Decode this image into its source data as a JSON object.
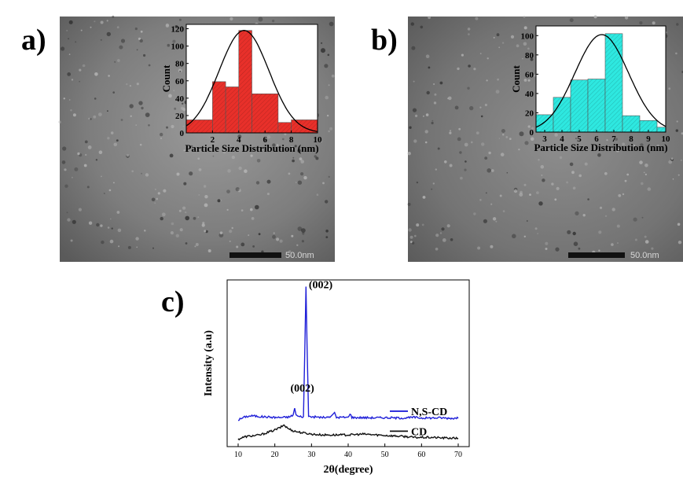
{
  "panel_labels": {
    "a": "a)",
    "b": "b)",
    "c": "c)"
  },
  "tem_a": {
    "scale_bar_label": "50.0nm"
  },
  "tem_b": {
    "scale_bar_label": "50.0nm"
  },
  "chart_data": [
    {
      "id": "a",
      "type": "bar",
      "xlabel": "Particle Size Distribution (nm)",
      "ylabel": "Count",
      "xlim": [
        0,
        10
      ],
      "ylim": [
        0,
        125
      ],
      "xticks": [
        2,
        4,
        6,
        8,
        10
      ],
      "yticks": [
        0,
        20,
        40,
        60,
        80,
        100,
        120
      ],
      "bins": [
        {
          "x0": 0,
          "x1": 2,
          "value": 15
        },
        {
          "x0": 2,
          "x1": 3,
          "value": 59
        },
        {
          "x0": 3,
          "x1": 4,
          "value": 53
        },
        {
          "x0": 4,
          "x1": 5,
          "value": 118
        },
        {
          "x0": 5,
          "x1": 7,
          "value": 45
        },
        {
          "x0": 7,
          "x1": 8,
          "value": 12
        },
        {
          "x0": 8,
          "x1": 10,
          "value": 15
        }
      ],
      "fit_curve": {
        "mean": 4.4,
        "sd": 1.9,
        "peak": 118
      },
      "bar_color": "#e8302a",
      "curve_color": "#000000"
    },
    {
      "id": "b",
      "type": "bar",
      "xlabel": "Particle Size Distribution (nm)",
      "ylabel": "Count",
      "xlim": [
        2.5,
        10
      ],
      "ylim": [
        0,
        110
      ],
      "xticks": [
        3,
        4,
        5,
        6,
        7,
        8,
        9,
        10
      ],
      "yticks": [
        0,
        20,
        40,
        60,
        80,
        100
      ],
      "bins": [
        {
          "x0": 2.5,
          "x1": 3.5,
          "value": 18
        },
        {
          "x0": 3.5,
          "x1": 4.5,
          "value": 36
        },
        {
          "x0": 4.5,
          "x1": 5.5,
          "value": 54
        },
        {
          "x0": 5.5,
          "x1": 6.5,
          "value": 55
        },
        {
          "x0": 6.5,
          "x1": 7.5,
          "value": 102
        },
        {
          "x0": 7.5,
          "x1": 8.5,
          "value": 17
        },
        {
          "x0": 8.5,
          "x1": 9.5,
          "value": 12
        },
        {
          "x0": 9.5,
          "x1": 10,
          "value": 5
        }
      ],
      "fit_curve": {
        "mean": 6.3,
        "sd": 1.55,
        "peak": 101
      },
      "bar_color": "#2ee8e0",
      "curve_color": "#000000"
    },
    {
      "id": "c",
      "type": "line",
      "xlabel": "2θ(degree)",
      "ylabel": "Intensity (a.u)",
      "xlim": [
        7,
        73
      ],
      "ylim": [
        0,
        100
      ],
      "xticks": [
        10,
        20,
        30,
        40,
        50,
        60,
        70
      ],
      "legend_position": "right",
      "annotations": [
        {
          "text": "(002)",
          "x": 32.5,
          "y": 95
        },
        {
          "text": "(002)",
          "x": 27.5,
          "y": 33
        }
      ],
      "series": [
        {
          "name": "N,S-CD",
          "color": "#2020d8",
          "baseline": 17,
          "points": [
            [
              10,
              16
            ],
            [
              12,
              18
            ],
            [
              14,
              18.5
            ],
            [
              16,
              18
            ],
            [
              18,
              17.8
            ],
            [
              20,
              17.5
            ],
            [
              22,
              17.5
            ],
            [
              24,
              17.8
            ],
            [
              25,
              19
            ],
            [
              25.4,
              23
            ],
            [
              25.8,
              19
            ],
            [
              26.5,
              18
            ],
            [
              27.8,
              18
            ],
            [
              28.2,
              60
            ],
            [
              28.5,
              96
            ],
            [
              28.8,
              60
            ],
            [
              29.2,
              18
            ],
            [
              31,
              17.8
            ],
            [
              33,
              17.5
            ],
            [
              35,
              17.5
            ],
            [
              36.3,
              20.5
            ],
            [
              36.8,
              17.5
            ],
            [
              38,
              17.6
            ],
            [
              40,
              17.5
            ],
            [
              40.5,
              20
            ],
            [
              41,
              17.5
            ],
            [
              44,
              17.4
            ],
            [
              47,
              17.3
            ],
            [
              50,
              17.4
            ],
            [
              53,
              17.2
            ],
            [
              56,
              17.2
            ],
            [
              58,
              17.6
            ],
            [
              60,
              17.2
            ],
            [
              63,
              17.2
            ],
            [
              65,
              17.3
            ],
            [
              67,
              17.1
            ],
            [
              70,
              17
            ]
          ]
        },
        {
          "name": "CD",
          "color": "#111111",
          "baseline": 5,
          "points": [
            [
              10,
              4.5
            ],
            [
              12,
              6
            ],
            [
              14,
              6.5
            ],
            [
              16,
              7
            ],
            [
              18,
              8.5
            ],
            [
              20,
              10
            ],
            [
              21.5,
              11.5
            ],
            [
              22.5,
              13
            ],
            [
              23.5,
              11
            ],
            [
              25,
              9.5
            ],
            [
              27,
              8.5
            ],
            [
              30,
              7.5
            ],
            [
              33,
              7
            ],
            [
              36,
              7
            ],
            [
              40,
              7
            ],
            [
              44,
              7.5
            ],
            [
              48,
              7
            ],
            [
              52,
              6.5
            ],
            [
              56,
              6
            ],
            [
              58,
              5.5
            ],
            [
              60,
              5.5
            ],
            [
              63,
              5.5
            ],
            [
              66,
              5.2
            ],
            [
              70,
              5
            ]
          ]
        }
      ]
    }
  ]
}
